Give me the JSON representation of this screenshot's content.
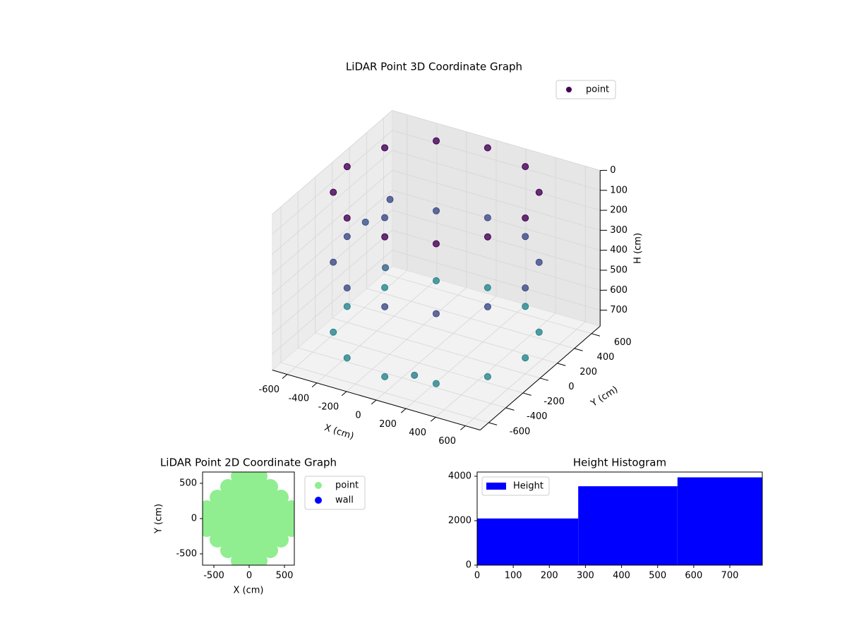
{
  "chart_data": [
    {
      "type": "scatter3d",
      "title": "LiDAR Point 3D Coordinate Graph",
      "xlabel": "X (cm)",
      "ylabel": "Y (cm)",
      "zlabel": "H (cm)",
      "xlim": [
        -700,
        700
      ],
      "ylim": [
        -700,
        700
      ],
      "zlim": [
        0,
        780
      ],
      "zinvert": true,
      "xticks": [
        -600,
        -400,
        -200,
        0,
        200,
        400,
        600
      ],
      "yticks": [
        -600,
        -400,
        -200,
        0,
        200,
        400,
        600
      ],
      "zticks": [
        0,
        100,
        200,
        300,
        400,
        500,
        600,
        700
      ],
      "colormap": [
        "#440154",
        "#3b528b",
        "#21918c"
      ],
      "legend": "upper right",
      "grid": true,
      "series": [
        {
          "name": "point",
          "color": "#440154",
          "x": [
            600,
            520,
            300,
            0,
            -300,
            -520,
            -600,
            -520,
            -300,
            0,
            300,
            520,
            600,
            520,
            300,
            0,
            -300,
            -520,
            -600,
            -520,
            -300,
            0,
            300,
            520,
            600,
            520,
            300,
            0,
            -300,
            -520,
            -600,
            -520,
            -300,
            0,
            300,
            520,
            -650,
            -600,
            -400,
            200
          ],
          "y": [
            0,
            300,
            520,
            600,
            520,
            300,
            0,
            -300,
            -520,
            -600,
            -520,
            -300,
            0,
            300,
            520,
            600,
            520,
            300,
            0,
            -300,
            -520,
            -600,
            -520,
            -300,
            0,
            300,
            520,
            600,
            520,
            300,
            0,
            -300,
            -520,
            -600,
            -520,
            -300,
            300,
            500,
            100,
            -600
          ],
          "z": [
            0,
            0,
            0,
            0,
            0,
            0,
            0,
            0,
            0,
            0,
            0,
            0,
            350,
            350,
            350,
            350,
            350,
            350,
            350,
            350,
            350,
            350,
            350,
            350,
            700,
            700,
            700,
            700,
            700,
            700,
            700,
            700,
            700,
            700,
            700,
            700,
            400,
            350,
            500,
            650
          ]
        }
      ]
    },
    {
      "type": "scatter",
      "title": "LiDAR Point 2D Coordinate Graph",
      "xlabel": "X (cm)",
      "ylabel": "Y (cm)",
      "xlim": [
        -660,
        640
      ],
      "ylim": [
        -660,
        660
      ],
      "xticks": [
        -500,
        0,
        500
      ],
      "yticks": [
        -500,
        0,
        500
      ],
      "legend": "outside right",
      "series": [
        {
          "name": "point",
          "color": "#90ee90",
          "x": [
            -600,
            -600,
            -600,
            -450,
            -450,
            -450,
            -450,
            -450,
            -300,
            -300,
            -300,
            -300,
            -300,
            -300,
            -300,
            -150,
            -150,
            -150,
            -150,
            -150,
            -150,
            -150,
            -150,
            -150,
            0,
            0,
            0,
            0,
            0,
            0,
            0,
            0,
            0,
            150,
            150,
            150,
            150,
            150,
            150,
            150,
            150,
            150,
            300,
            300,
            300,
            300,
            300,
            300,
            300,
            450,
            450,
            450,
            450,
            450,
            600,
            600,
            600
          ],
          "y": [
            -150,
            0,
            150,
            -300,
            -150,
            0,
            150,
            300,
            -450,
            -300,
            -150,
            0,
            150,
            300,
            450,
            -600,
            -450,
            -300,
            -150,
            0,
            150,
            300,
            450,
            600,
            -600,
            -450,
            -300,
            -150,
            0,
            150,
            300,
            450,
            600,
            -600,
            -450,
            -300,
            -150,
            0,
            150,
            300,
            450,
            600,
            -450,
            -300,
            -150,
            0,
            150,
            300,
            450,
            -300,
            -150,
            0,
            150,
            300,
            -150,
            0,
            150
          ]
        },
        {
          "name": "wall",
          "color": "#0000ff",
          "x": [],
          "y": []
        }
      ]
    },
    {
      "type": "histogram",
      "title": "Height Histogram",
      "legend": "upper left",
      "series": [
        {
          "name": "Height",
          "color": "#0000ff",
          "bins": [
            0,
            280,
            555,
            790
          ],
          "values": [
            2100,
            3550,
            3950
          ]
        }
      ],
      "xlim": [
        0,
        790
      ],
      "ylim": [
        0,
        4190
      ],
      "xticks": [
        0,
        100,
        200,
        300,
        400,
        500,
        600,
        700
      ],
      "yticks": [
        0,
        2000,
        4000
      ]
    }
  ]
}
